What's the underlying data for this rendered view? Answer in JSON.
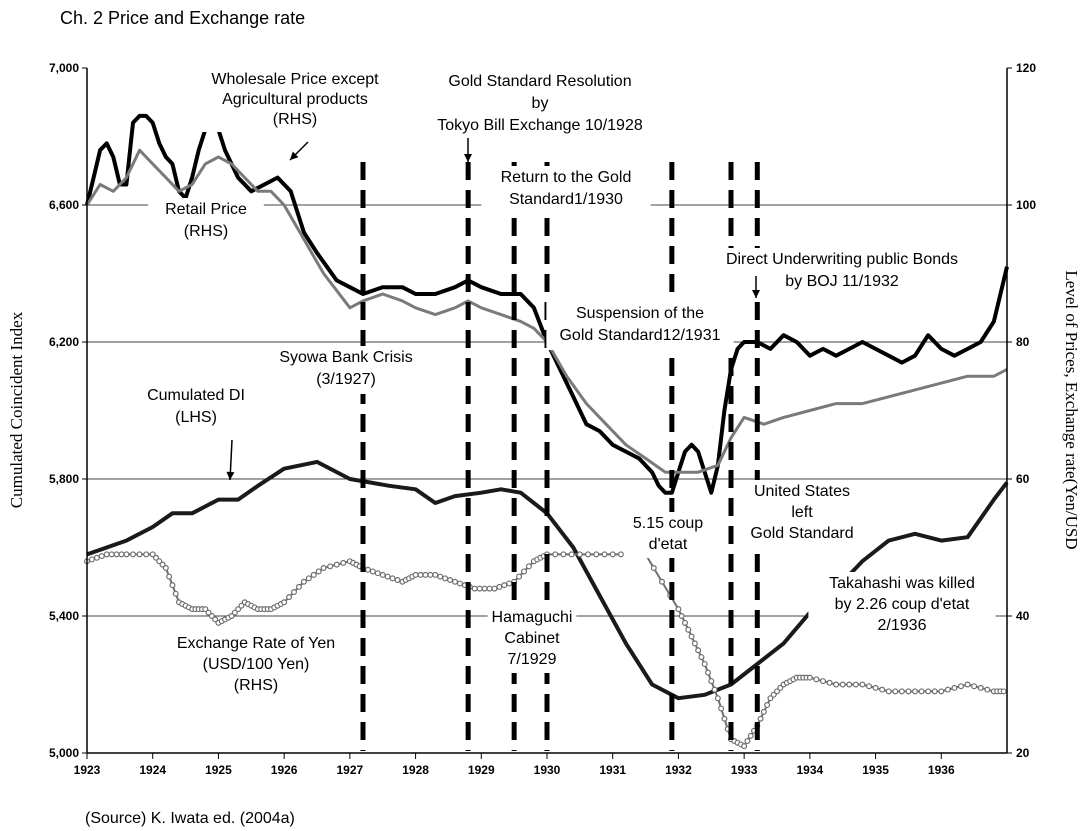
{
  "header": "Ch. 2   Price and Exchange rate",
  "source": "(Source) K. Iwata ed. (2004a)",
  "chart_data": {
    "type": "line",
    "ylabel_left": "Cumulated Coincident Index",
    "ylabel_right": "Level of Prices, Exchange rate(Yen/USD",
    "xlim": [
      1923,
      1937
    ],
    "ylim_left": [
      5000,
      7000
    ],
    "ylim_right": [
      20,
      120
    ],
    "x_ticks": [
      "1923",
      "1924",
      "1925",
      "1926",
      "1927",
      "1928",
      "1929",
      "1930",
      "1931",
      "1932",
      "1933",
      "1934",
      "1935",
      "1936"
    ],
    "y_ticks_left": [
      "5,000",
      "5,400",
      "5,800",
      "6,200",
      "6,600",
      "7,000"
    ],
    "y_ticks_right": [
      "20",
      "40",
      "60",
      "80",
      "100",
      "120"
    ],
    "grid": "horizontal",
    "series": [
      {
        "name": "Wholesale Price except Agricultural products (RHS)",
        "axis": "right",
        "color": "#000000",
        "points": [
          [
            1923.0,
            100
          ],
          [
            1923.1,
            104
          ],
          [
            1923.2,
            108
          ],
          [
            1923.3,
            109
          ],
          [
            1923.4,
            107
          ],
          [
            1923.5,
            103
          ],
          [
            1923.6,
            103
          ],
          [
            1923.7,
            112
          ],
          [
            1923.8,
            113
          ],
          [
            1923.9,
            113
          ],
          [
            1924.0,
            112
          ],
          [
            1924.1,
            109
          ],
          [
            1924.2,
            107
          ],
          [
            1924.3,
            106
          ],
          [
            1924.4,
            102
          ],
          [
            1924.5,
            101
          ],
          [
            1924.6,
            104
          ],
          [
            1924.7,
            108
          ],
          [
            1924.8,
            111
          ],
          [
            1924.9,
            112
          ],
          [
            1925.0,
            111
          ],
          [
            1925.1,
            108
          ],
          [
            1925.3,
            104
          ],
          [
            1925.5,
            102
          ],
          [
            1925.7,
            103
          ],
          [
            1925.9,
            104
          ],
          [
            1926.1,
            102
          ],
          [
            1926.3,
            96
          ],
          [
            1926.5,
            93
          ],
          [
            1926.8,
            89
          ],
          [
            1927.0,
            88
          ],
          [
            1927.2,
            87
          ],
          [
            1927.5,
            88
          ],
          [
            1927.8,
            88
          ],
          [
            1928.0,
            87
          ],
          [
            1928.3,
            87
          ],
          [
            1928.6,
            88
          ],
          [
            1928.8,
            89
          ],
          [
            1929.0,
            88
          ],
          [
            1929.3,
            87
          ],
          [
            1929.6,
            87
          ],
          [
            1929.8,
            85
          ],
          [
            1930.0,
            80
          ],
          [
            1930.2,
            76
          ],
          [
            1930.4,
            72
          ],
          [
            1930.6,
            68
          ],
          [
            1930.8,
            67
          ],
          [
            1931.0,
            65
          ],
          [
            1931.2,
            64
          ],
          [
            1931.4,
            63
          ],
          [
            1931.6,
            61
          ],
          [
            1931.7,
            59
          ],
          [
            1931.8,
            58
          ],
          [
            1931.9,
            58
          ],
          [
            1932.0,
            61
          ],
          [
            1932.1,
            64
          ],
          [
            1932.2,
            65
          ],
          [
            1932.3,
            64
          ],
          [
            1932.4,
            61
          ],
          [
            1932.5,
            58
          ],
          [
            1932.6,
            62
          ],
          [
            1932.7,
            70
          ],
          [
            1932.8,
            76
          ],
          [
            1932.9,
            79
          ],
          [
            1933.0,
            80
          ],
          [
            1933.2,
            80
          ],
          [
            1933.4,
            79
          ],
          [
            1933.6,
            81
          ],
          [
            1933.8,
            80
          ],
          [
            1934.0,
            78
          ],
          [
            1934.2,
            79
          ],
          [
            1934.4,
            78
          ],
          [
            1934.6,
            79
          ],
          [
            1934.8,
            80
          ],
          [
            1935.0,
            79
          ],
          [
            1935.2,
            78
          ],
          [
            1935.4,
            77
          ],
          [
            1935.6,
            78
          ],
          [
            1935.8,
            81
          ],
          [
            1936.0,
            79
          ],
          [
            1936.2,
            78
          ],
          [
            1936.4,
            79
          ],
          [
            1936.6,
            80
          ],
          [
            1936.8,
            83
          ],
          [
            1937.0,
            91
          ]
        ]
      },
      {
        "name": "Retail Price (RHS)",
        "axis": "right",
        "color": "#7a7a7a",
        "points": [
          [
            1923.0,
            100
          ],
          [
            1923.2,
            103
          ],
          [
            1923.4,
            102
          ],
          [
            1923.6,
            104
          ],
          [
            1923.8,
            108
          ],
          [
            1924.0,
            106
          ],
          [
            1924.2,
            104
          ],
          [
            1924.4,
            102
          ],
          [
            1924.6,
            103
          ],
          [
            1924.8,
            106
          ],
          [
            1925.0,
            107
          ],
          [
            1925.2,
            106
          ],
          [
            1925.4,
            104
          ],
          [
            1925.6,
            102
          ],
          [
            1925.8,
            102
          ],
          [
            1926.0,
            100
          ],
          [
            1926.3,
            95
          ],
          [
            1926.6,
            90
          ],
          [
            1927.0,
            85
          ],
          [
            1927.2,
            86
          ],
          [
            1927.5,
            87
          ],
          [
            1927.8,
            86
          ],
          [
            1928.0,
            85
          ],
          [
            1928.3,
            84
          ],
          [
            1928.6,
            85
          ],
          [
            1928.8,
            86
          ],
          [
            1929.0,
            85
          ],
          [
            1929.3,
            84
          ],
          [
            1929.6,
            83
          ],
          [
            1929.8,
            82
          ],
          [
            1930.0,
            80
          ],
          [
            1930.3,
            75
          ],
          [
            1930.6,
            71
          ],
          [
            1930.9,
            68
          ],
          [
            1931.2,
            65
          ],
          [
            1931.5,
            63
          ],
          [
            1931.8,
            61
          ],
          [
            1932.0,
            61
          ],
          [
            1932.3,
            61
          ],
          [
            1932.6,
            62
          ],
          [
            1932.8,
            66
          ],
          [
            1933.0,
            69
          ],
          [
            1933.3,
            68
          ],
          [
            1933.6,
            69
          ],
          [
            1934.0,
            70
          ],
          [
            1934.4,
            71
          ],
          [
            1934.8,
            71
          ],
          [
            1935.2,
            72
          ],
          [
            1935.6,
            73
          ],
          [
            1936.0,
            74
          ],
          [
            1936.4,
            75
          ],
          [
            1936.8,
            75
          ],
          [
            1937.0,
            76
          ]
        ]
      },
      {
        "name": "Cumulated DI (LHS)",
        "axis": "left",
        "color": "#1a1a1a",
        "points": [
          [
            1923.0,
            5580
          ],
          [
            1923.3,
            5600
          ],
          [
            1923.6,
            5620
          ],
          [
            1924.0,
            5660
          ],
          [
            1924.3,
            5700
          ],
          [
            1924.6,
            5700
          ],
          [
            1925.0,
            5740
          ],
          [
            1925.3,
            5740
          ],
          [
            1925.6,
            5780
          ],
          [
            1926.0,
            5830
          ],
          [
            1926.5,
            5850
          ],
          [
            1927.0,
            5800
          ],
          [
            1927.3,
            5790
          ],
          [
            1927.6,
            5780
          ],
          [
            1928.0,
            5770
          ],
          [
            1928.3,
            5730
          ],
          [
            1928.6,
            5750
          ],
          [
            1929.0,
            5760
          ],
          [
            1929.3,
            5770
          ],
          [
            1929.6,
            5760
          ],
          [
            1930.0,
            5700
          ],
          [
            1930.4,
            5600
          ],
          [
            1930.8,
            5460
          ],
          [
            1931.2,
            5320
          ],
          [
            1931.6,
            5200
          ],
          [
            1932.0,
            5160
          ],
          [
            1932.4,
            5170
          ],
          [
            1932.8,
            5200
          ],
          [
            1933.2,
            5260
          ],
          [
            1933.6,
            5320
          ],
          [
            1934.0,
            5410
          ],
          [
            1934.4,
            5480
          ],
          [
            1934.8,
            5560
          ],
          [
            1935.2,
            5620
          ],
          [
            1935.6,
            5640
          ],
          [
            1936.0,
            5620
          ],
          [
            1936.4,
            5630
          ],
          [
            1936.8,
            5740
          ],
          [
            1937.0,
            5790
          ]
        ]
      },
      {
        "name": "Exchange Rate of Yen (USD/100 Yen) (RHS)",
        "axis": "right",
        "color": "#6e6e6e",
        "marker": "circle",
        "points": [
          [
            1923.0,
            48
          ],
          [
            1923.3,
            49
          ],
          [
            1923.6,
            49
          ],
          [
            1924.0,
            49
          ],
          [
            1924.2,
            47
          ],
          [
            1924.4,
            42
          ],
          [
            1924.6,
            41
          ],
          [
            1924.8,
            41
          ],
          [
            1925.0,
            39
          ],
          [
            1925.2,
            40
          ],
          [
            1925.4,
            42
          ],
          [
            1925.6,
            41
          ],
          [
            1925.8,
            41
          ],
          [
            1926.0,
            42
          ],
          [
            1926.3,
            45
          ],
          [
            1926.6,
            47
          ],
          [
            1927.0,
            48
          ],
          [
            1927.2,
            47
          ],
          [
            1927.5,
            46
          ],
          [
            1927.8,
            45
          ],
          [
            1928.0,
            46
          ],
          [
            1928.3,
            46
          ],
          [
            1928.6,
            45
          ],
          [
            1928.9,
            44
          ],
          [
            1929.2,
            44
          ],
          [
            1929.5,
            45
          ],
          [
            1929.8,
            48
          ],
          [
            1930.0,
            49
          ],
          [
            1930.5,
            49
          ],
          [
            1931.0,
            49
          ],
          [
            1931.5,
            49
          ],
          [
            1932.0,
            41
          ],
          [
            1932.2,
            37
          ],
          [
            1932.4,
            33
          ],
          [
            1932.6,
            28
          ],
          [
            1932.8,
            22
          ],
          [
            1933.0,
            21
          ],
          [
            1933.2,
            24
          ],
          [
            1933.4,
            28
          ],
          [
            1933.6,
            30
          ],
          [
            1933.8,
            31
          ],
          [
            1934.0,
            31
          ],
          [
            1934.4,
            30
          ],
          [
            1934.8,
            30
          ],
          [
            1935.2,
            29
          ],
          [
            1935.6,
            29
          ],
          [
            1936.0,
            29
          ],
          [
            1936.4,
            30
          ],
          [
            1936.8,
            29
          ],
          [
            1937.0,
            29
          ]
        ]
      }
    ],
    "events": [
      {
        "x": 1927.2,
        "label": "Syowa Bank Crisis (3/1927)"
      },
      {
        "x": 1928.8,
        "label": "Gold Standard Resolution by Tokyo Bill Exchange 10/1928"
      },
      {
        "x": 1929.5,
        "label": "Hamaguchi Cabinet 7/1929"
      },
      {
        "x": 1930.0,
        "label": "Return to the Gold Standard1/1930"
      },
      {
        "x": 1931.9,
        "label": "Suspension of the Gold Standard12/1931"
      },
      {
        "x": 1932.8,
        "label": "Direct Underwriting public Bonds by BOJ 11/1932"
      },
      {
        "x": 1933.2,
        "label": "United States left Gold Standard"
      }
    ],
    "annotations": {
      "wholesale": [
        "Wholesale Price except",
        "Agricultural products",
        "(RHS)"
      ],
      "retail": [
        "Retail Price",
        "(RHS)"
      ],
      "di": [
        "Cumulated DI",
        "(LHS)"
      ],
      "exchange": [
        "Exchange Rate of Yen",
        "(USD/100 Yen)",
        "(RHS)"
      ],
      "gold_resolution": [
        "Gold Standard Resolution",
        "by",
        "Tokyo Bill Exchange 10/1928"
      ],
      "return_gold": [
        "Return to the Gold",
        "Standard1/1930"
      ],
      "syowa": [
        "Syowa Bank Crisis",
        "(3/1927)"
      ],
      "suspension": [
        "Suspension of the",
        "Gold Standard12/1931"
      ],
      "direct": [
        "Direct Underwriting public Bonds",
        "by BOJ 11/1932"
      ],
      "hamaguchi": [
        "Hamaguchi",
        "Cabinet",
        "7/1929"
      ],
      "coup515": [
        "5.15 coup",
        "d'etat"
      ],
      "us_left": [
        "United States",
        "left",
        "Gold Standard"
      ],
      "takahashi": [
        "Takahashi was killed",
        "by 2.26 coup d'etat",
        "2/1936"
      ]
    }
  }
}
